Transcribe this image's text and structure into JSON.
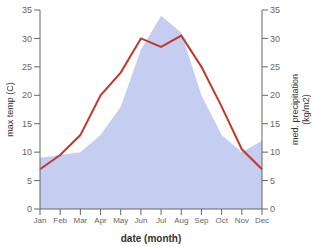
{
  "chart_data": {
    "type": "line",
    "categories": [
      "Jan",
      "Feb",
      "Mar",
      "Apr",
      "May",
      "Jun",
      "Jul",
      "Aug",
      "Sep",
      "Oct",
      "Nov",
      "Dec"
    ],
    "xlabel": "date (month)",
    "ylabel": "max temp (C)",
    "y2label": "med. precipitation\n(kg/m2)",
    "ylim": [
      0,
      35
    ],
    "yticks": [
      0,
      5,
      10,
      15,
      20,
      25,
      30,
      35
    ],
    "y2lim": [
      0,
      35
    ],
    "y2ticks": [
      0,
      5,
      10,
      15,
      20,
      25,
      30,
      35
    ],
    "grid": false,
    "series": [
      {
        "type": "area",
        "color": "#c5cef0",
        "axis": "y2",
        "values": [
          9,
          9.5,
          10,
          13,
          18,
          28,
          34,
          31,
          20,
          13,
          10,
          12
        ]
      },
      {
        "type": "line",
        "color": "#c0392b",
        "values": [
          7,
          9.5,
          13,
          20,
          24,
          30,
          28.5,
          30.5,
          25,
          18,
          10.5,
          7
        ]
      }
    ]
  }
}
